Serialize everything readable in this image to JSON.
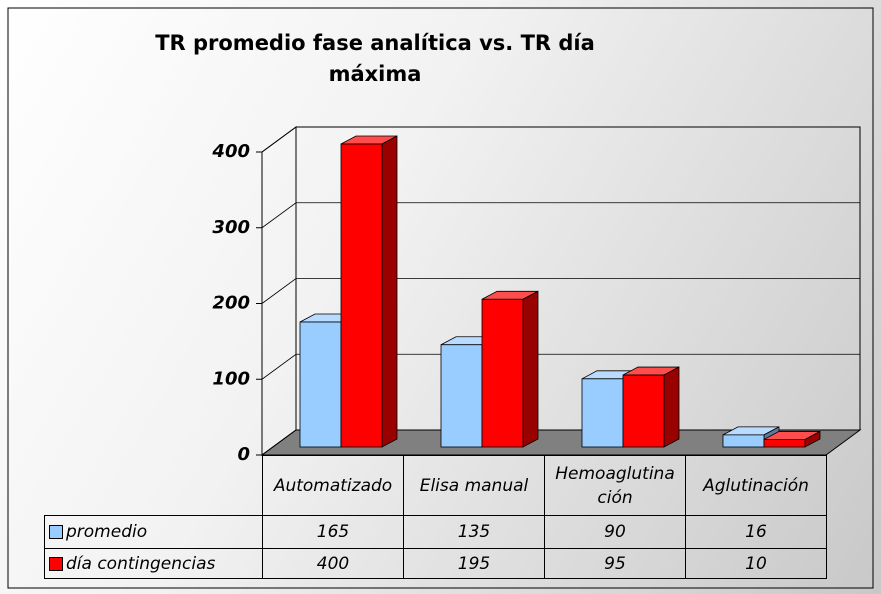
{
  "chart_data": {
    "type": "bar",
    "title": "TR promedio fase analítica vs. TR día máxima",
    "categories": [
      "Automatizado",
      "Elisa manual",
      "Hemoaglutinación",
      "Aglutinación"
    ],
    "series": [
      {
        "name": "promedio",
        "color": "#99ccff",
        "values": [
          165,
          135,
          90,
          16
        ]
      },
      {
        "name": "día contingencias",
        "color": "#ff0000",
        "values": [
          400,
          195,
          95,
          10
        ]
      }
    ],
    "ylim": [
      0,
      400
    ],
    "yticks": [
      0,
      100,
      200,
      300,
      400
    ],
    "grid": true,
    "data_table": true
  }
}
